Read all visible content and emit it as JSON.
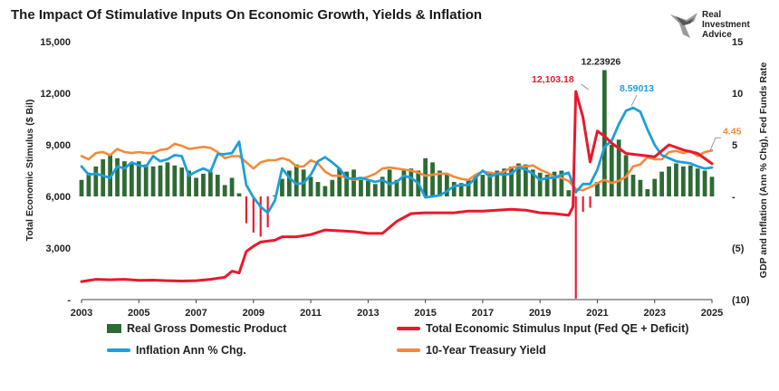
{
  "chart_data": {
    "type": "mixed",
    "title": "The Impact Of Stimulative Inputs On Economic Growth, Yields & Inflation",
    "ylabel_left": "Total Economic Stimulus ($ Bil)",
    "ylabel_right": "GDP and Inflation (Ann % Chg), Fed Funds Rate",
    "x_ticks": [
      "2003",
      "2005",
      "2007",
      "2009",
      "2011",
      "2013",
      "2015",
      "2017",
      "2019",
      "2021",
      "2023",
      "2025"
    ],
    "x_range": [
      2003,
      2025
    ],
    "left_ticks": [
      "15,000",
      "12,000",
      "9,000",
      "6,000",
      "3,000",
      "-"
    ],
    "left_ylim": [
      0,
      15000
    ],
    "right_ticks": [
      "15",
      "10",
      "5",
      "-",
      "(5)",
      "(10)"
    ],
    "right_ylim": [
      -10,
      15
    ],
    "colors": {
      "gdp": "#2e6b34",
      "stimulus": "#e8192c",
      "inflation": "#1f9fd8",
      "yield": "#f28a3c",
      "gdp_neg": "#e8192c"
    },
    "annotations": [
      {
        "text": "12,103.18",
        "series": "Total Economic Stimulus Input (Fed QE + Deficit)",
        "x": 2020.25,
        "y": 12103.18
      },
      {
        "text": "12.23926",
        "series": "Real Gross Domestic Product",
        "x": 2021.25,
        "y": 12.23926
      },
      {
        "text": "8.59013",
        "series": "Inflation Ann % Chg.",
        "x": 2022.25,
        "y": 8.59013
      },
      {
        "text": "4.45",
        "series": "10-Year Treasury Yield",
        "x": 2025.0,
        "y": 4.45
      }
    ],
    "legend": [
      {
        "name": "Real Gross Domestic Product",
        "kind": "bar",
        "color": "#2e6b34"
      },
      {
        "name": "Total Economic Stimulus Input (Fed QE + Deficit)",
        "kind": "line",
        "color": "#e8192c"
      },
      {
        "name": "Inflation Ann % Chg.",
        "kind": "line",
        "color": "#1f9fd8"
      },
      {
        "name": "10-Year Treasury Yield",
        "kind": "line",
        "color": "#f28a3c"
      }
    ],
    "logo_text": [
      "Real",
      "Investment",
      "Advice"
    ],
    "series": [
      {
        "name": "Real Gross Domestic Product",
        "axis": "right",
        "kind": "bar",
        "x": [
          2003.0,
          2003.25,
          2003.5,
          2003.75,
          2004.0,
          2004.25,
          2004.5,
          2004.75,
          2005.0,
          2005.25,
          2005.5,
          2005.75,
          2006.0,
          2006.25,
          2006.5,
          2006.75,
          2007.0,
          2007.25,
          2007.5,
          2007.75,
          2008.0,
          2008.25,
          2008.5,
          2008.75,
          2009.0,
          2009.25,
          2009.5,
          2009.75,
          2010.0,
          2010.25,
          2010.5,
          2010.75,
          2011.0,
          2011.25,
          2011.5,
          2011.75,
          2012.0,
          2012.25,
          2012.5,
          2012.75,
          2013.0,
          2013.25,
          2013.5,
          2013.75,
          2014.0,
          2014.25,
          2014.5,
          2014.75,
          2015.0,
          2015.25,
          2015.5,
          2015.75,
          2016.0,
          2016.25,
          2016.5,
          2016.75,
          2017.0,
          2017.25,
          2017.5,
          2017.75,
          2018.0,
          2018.25,
          2018.5,
          2018.75,
          2019.0,
          2019.25,
          2019.5,
          2019.75,
          2020.0,
          2020.25,
          2020.5,
          2020.75,
          2021.0,
          2021.25,
          2021.5,
          2021.75,
          2022.0,
          2022.25,
          2022.5,
          2022.75,
          2023.0,
          2023.25,
          2023.5,
          2023.75,
          2024.0,
          2024.25,
          2024.5,
          2024.75,
          2025.0
        ],
        "values": [
          1.6,
          2.3,
          2.9,
          3.6,
          4.0,
          3.7,
          3.4,
          3.2,
          3.4,
          3.1,
          2.9,
          3.0,
          3.3,
          3.0,
          2.8,
          2.5,
          1.8,
          2.2,
          2.4,
          2.1,
          1.1,
          1.8,
          0.3,
          -2.6,
          -3.5,
          -3.9,
          -3.0,
          0.1,
          1.7,
          2.5,
          3.1,
          2.6,
          1.9,
          1.4,
          1.0,
          1.6,
          2.7,
          2.4,
          2.6,
          1.6,
          1.5,
          1.2,
          1.9,
          2.6,
          1.6,
          2.5,
          2.7,
          2.5,
          3.7,
          3.3,
          2.5,
          2.1,
          1.4,
          1.3,
          1.6,
          2.0,
          2.1,
          2.4,
          2.5,
          2.7,
          2.9,
          3.2,
          3.1,
          2.6,
          2.3,
          2.1,
          2.4,
          2.5,
          0.6,
          -9.9,
          -1.5,
          -1.1,
          1.4,
          12.23926,
          5.0,
          5.5,
          4.0,
          2.1,
          1.6,
          0.7,
          1.7,
          2.4,
          2.9,
          3.2,
          2.9,
          3.0,
          2.7,
          2.5,
          1.9
        ]
      },
      {
        "name": "Total Economic Stimulus Input (Fed QE + Deficit)",
        "axis": "left",
        "kind": "line",
        "x": [
          2003.0,
          2003.5,
          2004.0,
          2004.5,
          2005.0,
          2005.5,
          2006.0,
          2006.5,
          2007.0,
          2007.5,
          2008.0,
          2008.25,
          2008.5,
          2008.75,
          2009.0,
          2009.25,
          2009.5,
          2009.75,
          2010.0,
          2010.5,
          2011.0,
          2011.5,
          2012.0,
          2012.5,
          2013.0,
          2013.5,
          2013.75,
          2014.0,
          2014.5,
          2015.0,
          2015.5,
          2016.0,
          2016.5,
          2017.0,
          2017.5,
          2018.0,
          2018.5,
          2019.0,
          2019.5,
          2020.0,
          2020.15,
          2020.25,
          2020.5,
          2020.75,
          2021.0,
          2021.25,
          2021.5,
          2022.0,
          2022.5,
          2023.0,
          2023.5,
          2024.0,
          2024.5,
          2025.0
        ],
        "values": [
          1050,
          1180,
          1150,
          1180,
          1120,
          1130,
          1100,
          1080,
          1100,
          1180,
          1300,
          1650,
          1550,
          2800,
          3100,
          3350,
          3400,
          3450,
          3650,
          3650,
          3780,
          4050,
          4000,
          3950,
          3850,
          3850,
          4200,
          4550,
          5000,
          5050,
          5050,
          5050,
          5150,
          5150,
          5200,
          5250,
          5200,
          5050,
          5000,
          4900,
          5400,
          12103.18,
          10600,
          8000,
          9800,
          9500,
          9100,
          8500,
          8400,
          8300,
          9000,
          8700,
          8500,
          7900
        ]
      },
      {
        "name": "Inflation Ann % Chg.",
        "axis": "right",
        "kind": "line",
        "x": [
          2003.0,
          2003.25,
          2003.5,
          2003.75,
          2004.0,
          2004.25,
          2004.5,
          2004.75,
          2005.0,
          2005.25,
          2005.5,
          2005.75,
          2006.0,
          2006.25,
          2006.5,
          2006.75,
          2007.0,
          2007.25,
          2007.5,
          2007.75,
          2008.0,
          2008.25,
          2008.5,
          2008.75,
          2009.0,
          2009.25,
          2009.5,
          2009.75,
          2010.0,
          2010.25,
          2010.5,
          2010.75,
          2011.0,
          2011.25,
          2011.5,
          2011.75,
          2012.0,
          2012.25,
          2012.5,
          2012.75,
          2013.0,
          2013.25,
          2013.5,
          2013.75,
          2014.0,
          2014.25,
          2014.5,
          2014.75,
          2015.0,
          2015.25,
          2015.5,
          2015.75,
          2016.0,
          2016.25,
          2016.5,
          2016.75,
          2017.0,
          2017.25,
          2017.5,
          2017.75,
          2018.0,
          2018.25,
          2018.5,
          2018.75,
          2019.0,
          2019.25,
          2019.5,
          2019.75,
          2020.0,
          2020.25,
          2020.5,
          2020.75,
          2021.0,
          2021.25,
          2021.5,
          2021.75,
          2022.0,
          2022.25,
          2022.5,
          2022.75,
          2023.0,
          2023.25,
          2023.5,
          2023.75,
          2024.0,
          2024.25,
          2024.5,
          2024.75,
          2025.0
        ],
        "values": [
          2.9,
          2.1,
          2.2,
          2.0,
          1.8,
          2.9,
          2.7,
          3.3,
          3.0,
          2.9,
          3.9,
          3.4,
          3.6,
          4.0,
          3.9,
          2.0,
          2.4,
          2.7,
          2.4,
          4.1,
          4.1,
          4.2,
          5.3,
          1.1,
          -0.1,
          -1.0,
          -1.6,
          -0.4,
          2.7,
          1.8,
          1.2,
          1.3,
          2.1,
          3.4,
          3.8,
          3.3,
          2.7,
          1.8,
          1.7,
          1.8,
          1.6,
          1.4,
          1.6,
          1.2,
          1.4,
          2.0,
          1.8,
          1.3,
          -0.1,
          0.0,
          0.1,
          0.5,
          1.0,
          1.1,
          1.1,
          1.8,
          2.5,
          1.9,
          2.2,
          2.1,
          2.2,
          2.8,
          2.6,
          2.2,
          1.6,
          1.8,
          1.8,
          2.1,
          2.3,
          0.4,
          1.2,
          1.2,
          2.6,
          4.8,
          5.4,
          7.0,
          8.3,
          8.59013,
          8.2,
          6.5,
          5.0,
          4.0,
          3.7,
          3.4,
          3.3,
          3.2,
          2.9,
          2.7,
          2.8
        ]
      },
      {
        "name": "10-Year Treasury Yield",
        "axis": "right",
        "kind": "line",
        "x": [
          2003.0,
          2003.25,
          2003.5,
          2003.75,
          2004.0,
          2004.25,
          2004.5,
          2004.75,
          2005.0,
          2005.25,
          2005.5,
          2005.75,
          2006.0,
          2006.25,
          2006.5,
          2006.75,
          2007.0,
          2007.25,
          2007.5,
          2007.75,
          2008.0,
          2008.25,
          2008.5,
          2008.75,
          2009.0,
          2009.25,
          2009.5,
          2009.75,
          2010.0,
          2010.25,
          2010.5,
          2010.75,
          2011.0,
          2011.25,
          2011.5,
          2011.75,
          2012.0,
          2012.25,
          2012.5,
          2012.75,
          2013.0,
          2013.25,
          2013.5,
          2013.75,
          2014.0,
          2014.25,
          2014.5,
          2014.75,
          2015.0,
          2015.25,
          2015.5,
          2015.75,
          2016.0,
          2016.25,
          2016.5,
          2016.75,
          2017.0,
          2017.25,
          2017.5,
          2017.75,
          2018.0,
          2018.25,
          2018.5,
          2018.75,
          2019.0,
          2019.25,
          2019.5,
          2019.75,
          2020.0,
          2020.25,
          2020.5,
          2020.75,
          2021.0,
          2021.25,
          2021.5,
          2021.75,
          2022.0,
          2022.25,
          2022.5,
          2022.75,
          2023.0,
          2023.25,
          2023.5,
          2023.75,
          2024.0,
          2024.25,
          2024.5,
          2024.75,
          2025.0
        ],
        "values": [
          3.9,
          3.6,
          4.2,
          4.3,
          4.0,
          4.6,
          4.3,
          4.2,
          4.3,
          4.2,
          4.2,
          4.5,
          4.6,
          5.1,
          4.9,
          4.6,
          4.7,
          4.8,
          4.7,
          4.3,
          3.7,
          3.9,
          3.9,
          3.3,
          2.7,
          3.3,
          3.5,
          3.5,
          3.7,
          3.5,
          2.9,
          2.9,
          3.5,
          3.2,
          2.4,
          2.0,
          2.0,
          1.8,
          1.6,
          1.7,
          1.9,
          2.2,
          2.7,
          2.8,
          2.7,
          2.6,
          2.5,
          2.3,
          2.0,
          2.1,
          2.2,
          2.2,
          1.9,
          1.7,
          1.6,
          2.1,
          2.4,
          2.3,
          2.2,
          2.4,
          2.8,
          2.9,
          2.9,
          3.0,
          2.6,
          2.3,
          1.9,
          1.8,
          1.5,
          0.7,
          0.6,
          0.9,
          1.3,
          1.6,
          1.3,
          1.5,
          1.9,
          2.9,
          3.1,
          3.8,
          3.6,
          3.6,
          4.3,
          4.4,
          4.2,
          4.4,
          3.9,
          4.3,
          4.45
        ]
      }
    ]
  }
}
